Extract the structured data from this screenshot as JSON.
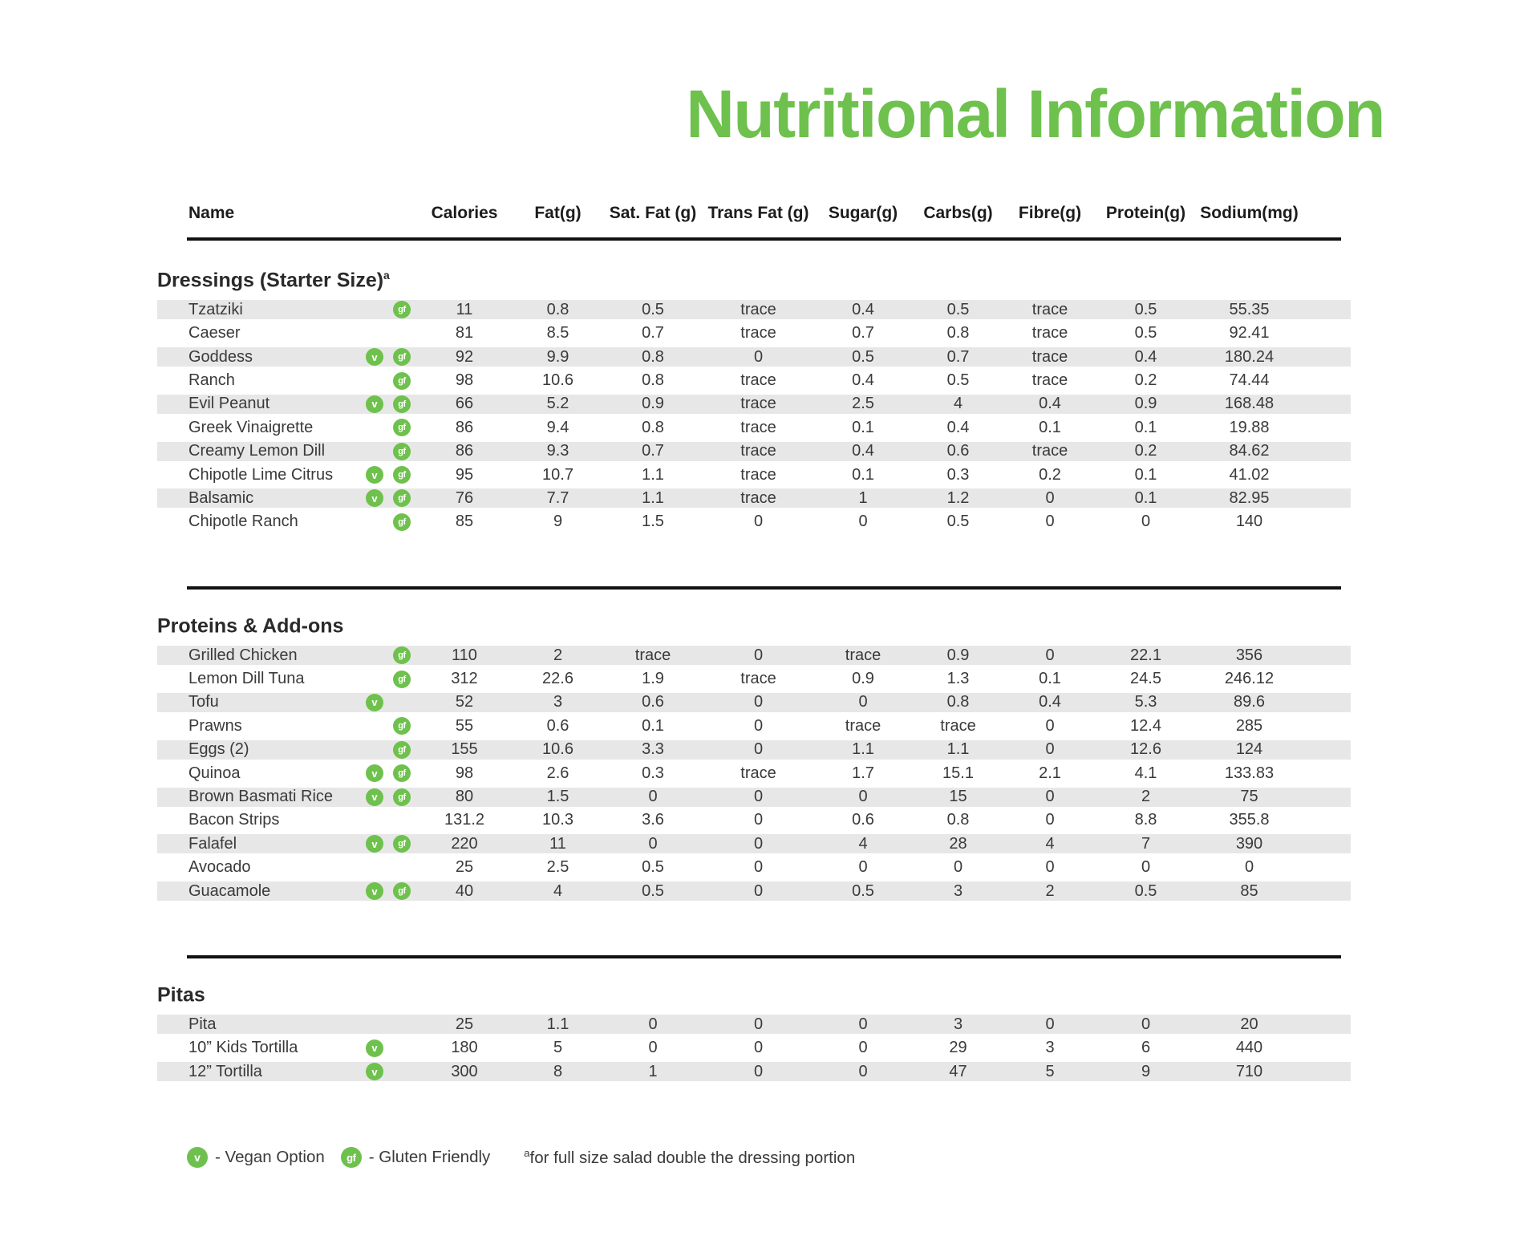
{
  "title": "Nutritional Information",
  "columns": [
    "Name",
    "Calories",
    "Fat(g)",
    "Sat. Fat (g)",
    "Trans Fat (g)",
    "Sugar(g)",
    "Carbs(g)",
    "Fibre(g)",
    "Protein(g)",
    "Sodium(mg)"
  ],
  "sections": [
    {
      "heading": "Dressings (Starter Size)",
      "heading_superscript": "a",
      "rows": [
        {
          "name": "Tzatziki",
          "vegan": false,
          "gluten_friendly": true,
          "values": [
            "11",
            "0.8",
            "0.5",
            "trace",
            "0.4",
            "0.5",
            "trace",
            "0.5",
            "55.35"
          ]
        },
        {
          "name": "Caeser",
          "vegan": false,
          "gluten_friendly": false,
          "values": [
            "81",
            "8.5",
            "0.7",
            "trace",
            "0.7",
            "0.8",
            "trace",
            "0.5",
            "92.41"
          ]
        },
        {
          "name": "Goddess",
          "vegan": true,
          "gluten_friendly": true,
          "values": [
            "92",
            "9.9",
            "0.8",
            "0",
            "0.5",
            "0.7",
            "trace",
            "0.4",
            "180.24"
          ]
        },
        {
          "name": "Ranch",
          "vegan": false,
          "gluten_friendly": true,
          "values": [
            "98",
            "10.6",
            "0.8",
            "trace",
            "0.4",
            "0.5",
            "trace",
            "0.2",
            "74.44"
          ]
        },
        {
          "name": "Evil Peanut",
          "vegan": true,
          "gluten_friendly": true,
          "values": [
            "66",
            "5.2",
            "0.9",
            "trace",
            "2.5",
            "4",
            "0.4",
            "0.9",
            "168.48"
          ]
        },
        {
          "name": "Greek Vinaigrette",
          "vegan": false,
          "gluten_friendly": true,
          "values": [
            "86",
            "9.4",
            "0.8",
            "trace",
            "0.1",
            "0.4",
            "0.1",
            "0.1",
            "19.88"
          ]
        },
        {
          "name": "Creamy Lemon Dill",
          "vegan": false,
          "gluten_friendly": true,
          "values": [
            "86",
            "9.3",
            "0.7",
            "trace",
            "0.4",
            "0.6",
            "trace",
            "0.2",
            "84.62"
          ]
        },
        {
          "name": "Chipotle Lime Citrus",
          "vegan": true,
          "gluten_friendly": true,
          "values": [
            "95",
            "10.7",
            "1.1",
            "trace",
            "0.1",
            "0.3",
            "0.2",
            "0.1",
            "41.02"
          ]
        },
        {
          "name": "Balsamic",
          "vegan": true,
          "gluten_friendly": true,
          "values": [
            "76",
            "7.7",
            "1.1",
            "trace",
            "1",
            "1.2",
            "0",
            "0.1",
            "82.95"
          ]
        },
        {
          "name": "Chipotle Ranch",
          "vegan": false,
          "gluten_friendly": true,
          "values": [
            "85",
            "9",
            "1.5",
            "0",
            "0",
            "0.5",
            "0",
            "0",
            "140"
          ]
        }
      ]
    },
    {
      "heading": "Proteins & Add-ons",
      "heading_superscript": "",
      "rows": [
        {
          "name": "Grilled Chicken",
          "vegan": false,
          "gluten_friendly": true,
          "values": [
            "110",
            "2",
            "trace",
            "0",
            "trace",
            "0.9",
            "0",
            "22.1",
            "356"
          ]
        },
        {
          "name": "Lemon Dill Tuna",
          "vegan": false,
          "gluten_friendly": true,
          "values": [
            "312",
            "22.6",
            "1.9",
            "trace",
            "0.9",
            "1.3",
            "0.1",
            "24.5",
            "246.12"
          ]
        },
        {
          "name": "Tofu",
          "vegan": true,
          "gluten_friendly": false,
          "values": [
            "52",
            "3",
            "0.6",
            "0",
            "0",
            "0.8",
            "0.4",
            "5.3",
            "89.6"
          ]
        },
        {
          "name": "Prawns",
          "vegan": false,
          "gluten_friendly": true,
          "values": [
            "55",
            "0.6",
            "0.1",
            "0",
            "trace",
            "trace",
            "0",
            "12.4",
            "285"
          ]
        },
        {
          "name": "Eggs (2)",
          "vegan": false,
          "gluten_friendly": true,
          "values": [
            "155",
            "10.6",
            "3.3",
            "0",
            "1.1",
            "1.1",
            "0",
            "12.6",
            "124"
          ]
        },
        {
          "name": "Quinoa",
          "vegan": true,
          "gluten_friendly": true,
          "values": [
            "98",
            "2.6",
            "0.3",
            "trace",
            "1.7",
            "15.1",
            "2.1",
            "4.1",
            "133.83"
          ]
        },
        {
          "name": "Brown Basmati Rice",
          "vegan": true,
          "gluten_friendly": true,
          "values": [
            "80",
            "1.5",
            "0",
            "0",
            "0",
            "15",
            "0",
            "2",
            "75"
          ]
        },
        {
          "name": "Bacon Strips",
          "vegan": false,
          "gluten_friendly": false,
          "values": [
            "131.2",
            "10.3",
            "3.6",
            "0",
            "0.6",
            "0.8",
            "0",
            "8.8",
            "355.8"
          ]
        },
        {
          "name": "Falafel",
          "vegan": true,
          "gluten_friendly": true,
          "values": [
            "220",
            "11",
            "0",
            "0",
            "4",
            "28",
            "4",
            "7",
            "390"
          ]
        },
        {
          "name": "Avocado",
          "vegan": false,
          "gluten_friendly": false,
          "values": [
            "25",
            "2.5",
            "0.5",
            "0",
            "0",
            "0",
            "0",
            "0",
            "0"
          ]
        },
        {
          "name": "Guacamole",
          "vegan": true,
          "gluten_friendly": true,
          "values": [
            "40",
            "4",
            "0.5",
            "0",
            "0.5",
            "3",
            "2",
            "0.5",
            "85"
          ]
        }
      ]
    },
    {
      "heading": "Pitas",
      "heading_superscript": "",
      "rows": [
        {
          "name": "Pita",
          "vegan": false,
          "gluten_friendly": false,
          "values": [
            "25",
            "1.1",
            "0",
            "0",
            "0",
            "3",
            "0",
            "0",
            "20"
          ]
        },
        {
          "name": "10” Kids Tortilla",
          "vegan": true,
          "gluten_friendly": false,
          "values": [
            "180",
            "5",
            "0",
            "0",
            "0",
            "29",
            "3",
            "6",
            "440"
          ]
        },
        {
          "name": "12” Tortilla",
          "vegan": true,
          "gluten_friendly": false,
          "values": [
            "300",
            "8",
            "1",
            "0",
            "0",
            "47",
            "5",
            "9",
            "710"
          ]
        }
      ]
    }
  ],
  "legend": {
    "vegan_symbol": "v",
    "vegan_label": "- Vegan Option",
    "gf_symbol": "gf",
    "gf_label": "- Gluten Friendly",
    "footnote_superscript": "a",
    "footnote": "for full size salad double the dressing portion"
  },
  "colors": {
    "brand_green": "#6EC14D",
    "row_shade": "#E7E7E7"
  }
}
